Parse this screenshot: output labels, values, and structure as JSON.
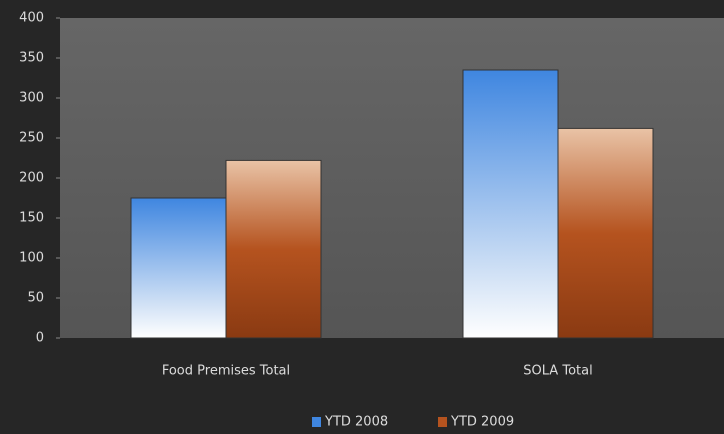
{
  "chart_data": {
    "type": "bar",
    "categories": [
      "Food Premises Total",
      "SOLA Total"
    ],
    "series": [
      {
        "name": "YTD 2008",
        "color": "#3f86e0",
        "values": [
          175,
          335
        ]
      },
      {
        "name": "YTD 2009",
        "color": "#b5531f",
        "values": [
          222,
          262
        ]
      }
    ],
    "ylim": [
      0,
      400
    ],
    "yticks": [
      0,
      50,
      100,
      150,
      200,
      250,
      300,
      350,
      400
    ],
    "legend": "bottom"
  }
}
